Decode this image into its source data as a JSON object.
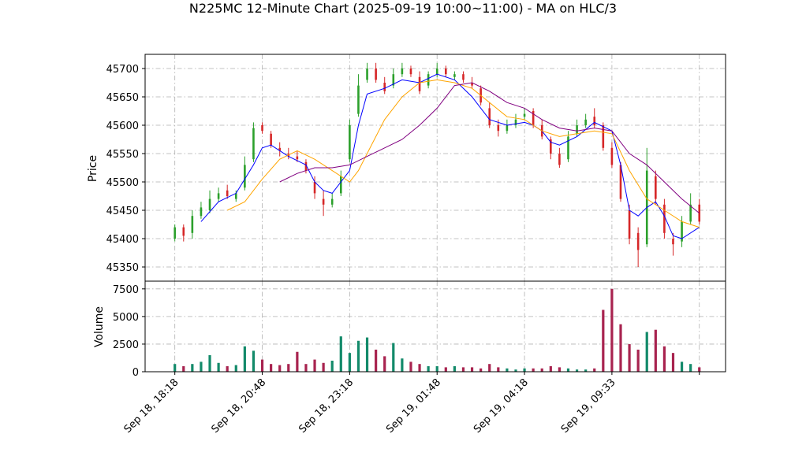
{
  "chart_data": {
    "type": "candlestick",
    "title": "N225MC 12-Minute Chart (2025-09-19 10:00~11:00) - MA on HLC/3",
    "price_panel": {
      "ylabel": "Price",
      "ylim": [
        45325,
        45725
      ],
      "yticks": [
        45350,
        45400,
        45450,
        45500,
        45550,
        45600,
        45650,
        45700
      ],
      "ytick_labels": [
        "45350",
        "45400",
        "45450",
        "45500",
        "45550",
        "45600",
        "45650",
        "45700"
      ],
      "grid": true,
      "candle_up_color": "#2ca02c",
      "candle_down_color": "#d62728",
      "candles": {
        "bar_index": [
          0,
          5,
          10,
          15,
          20,
          25,
          30,
          35,
          40,
          45,
          50,
          55,
          60,
          65,
          70,
          75,
          80,
          85,
          90,
          95,
          100,
          105,
          110,
          115,
          120,
          125,
          130,
          135,
          140,
          145,
          150,
          155,
          160,
          165,
          170,
          175,
          180,
          185,
          190,
          195,
          200,
          205,
          210,
          215,
          220,
          225,
          230,
          235,
          240,
          245,
          250,
          255,
          260,
          265,
          270,
          275,
          280,
          285,
          290,
          295,
          300
        ],
        "close": [
          45420,
          45405,
          45440,
          45455,
          45470,
          45480,
          45475,
          45480,
          45530,
          45595,
          45590,
          45565,
          45555,
          45545,
          45540,
          45520,
          45480,
          45460,
          45470,
          45510,
          45600,
          45670,
          45700,
          45680,
          45660,
          45690,
          45700,
          45690,
          45660,
          45690,
          45700,
          45690,
          45690,
          45680,
          45670,
          45640,
          45600,
          45590,
          45600,
          45610,
          45620,
          45600,
          45580,
          45550,
          45530,
          45580,
          45600,
          45610,
          45600,
          45560,
          45530,
          45470,
          45400,
          45380,
          45520,
          45470,
          45410,
          45390,
          45430,
          45460,
          45430
        ],
        "open": [
          45400,
          45420,
          45410,
          45440,
          45450,
          45470,
          45485,
          45470,
          45490,
          45540,
          45600,
          45585,
          45560,
          45550,
          45545,
          45535,
          45500,
          45470,
          45460,
          45480,
          45540,
          45620,
          45680,
          45700,
          45675,
          45670,
          45690,
          45700,
          45685,
          45670,
          45690,
          45700,
          45685,
          45690,
          45675,
          45665,
          45630,
          45600,
          45590,
          45600,
          45615,
          45625,
          45600,
          45575,
          45550,
          45540,
          45585,
          45600,
          45615,
          45600,
          45560,
          45530,
          45450,
          45410,
          45390,
          45510,
          45460,
          45400,
          45395,
          45430,
          45460
        ],
        "high": [
          45425,
          45425,
          45450,
          45465,
          45485,
          45490,
          45495,
          45485,
          45545,
          45605,
          45605,
          45590,
          45570,
          45560,
          45555,
          45540,
          45510,
          45485,
          45480,
          45520,
          45610,
          45690,
          45710,
          45710,
          45685,
          45700,
          45710,
          45705,
          45695,
          45695,
          45710,
          45705,
          45695,
          45695,
          45685,
          45670,
          45640,
          45610,
          45610,
          45620,
          45630,
          45630,
          45610,
          45580,
          45560,
          45590,
          45610,
          45620,
          45630,
          45605,
          45570,
          45535,
          45460,
          45420,
          45560,
          45520,
          45470,
          45410,
          45440,
          45480,
          45470
        ],
        "low": [
          45395,
          45395,
          45400,
          45435,
          45445,
          45465,
          45470,
          45465,
          45485,
          45535,
          45585,
          45560,
          45545,
          45540,
          45535,
          45515,
          45470,
          45440,
          45455,
          45475,
          45535,
          45615,
          45675,
          45675,
          45655,
          45665,
          45685,
          45685,
          45655,
          45665,
          45685,
          45685,
          45680,
          45675,
          45665,
          45635,
          45595,
          45580,
          45585,
          45595,
          45610,
          45595,
          45575,
          45540,
          45525,
          45535,
          45580,
          45595,
          45595,
          45555,
          45525,
          45465,
          45390,
          45350,
          45385,
          45460,
          45400,
          45370,
          45385,
          45425,
          45425
        ]
      },
      "ma_lines": [
        {
          "color": "#0000ff",
          "x": [
            15,
            25,
            35,
            45,
            50,
            55,
            65,
            75,
            80,
            85,
            90,
            100,
            105,
            110,
            120,
            130,
            140,
            150,
            160,
            170,
            180,
            190,
            200,
            205,
            210,
            215,
            220,
            230,
            240,
            250,
            255,
            260,
            265,
            270,
            275,
            280,
            285,
            290,
            300
          ],
          "y": [
            45430,
            45465,
            45480,
            45530,
            45560,
            45565,
            45545,
            45530,
            45500,
            45485,
            45480,
            45520,
            45600,
            45655,
            45665,
            45680,
            45675,
            45690,
            45680,
            45650,
            45610,
            45600,
            45605,
            45600,
            45590,
            45570,
            45565,
            45580,
            45605,
            45590,
            45530,
            45450,
            45440,
            45455,
            45465,
            45440,
            45405,
            45400,
            45420
          ]
        },
        {
          "color": "#ffa500",
          "x": [
            30,
            40,
            50,
            60,
            70,
            80,
            90,
            100,
            105,
            110,
            120,
            130,
            140,
            150,
            160,
            170,
            180,
            190,
            200,
            210,
            220,
            230,
            240,
            250,
            260,
            270,
            280,
            290,
            300
          ],
          "y": [
            45450,
            45465,
            45505,
            45540,
            45555,
            45540,
            45520,
            45500,
            45520,
            45550,
            45610,
            45650,
            45675,
            45680,
            45675,
            45665,
            45640,
            45615,
            45610,
            45590,
            45580,
            45585,
            45590,
            45585,
            45520,
            45470,
            45450,
            45430,
            45420
          ]
        },
        {
          "color": "#800080",
          "x": [
            60,
            70,
            80,
            90,
            100,
            110,
            120,
            130,
            140,
            150,
            160,
            170,
            180,
            190,
            200,
            210,
            220,
            230,
            240,
            250,
            260,
            270,
            280,
            290,
            300
          ],
          "y": [
            45500,
            45515,
            45525,
            45525,
            45530,
            45545,
            45560,
            45575,
            45600,
            45630,
            45670,
            45675,
            45660,
            45640,
            45630,
            45610,
            45595,
            45590,
            45595,
            45590,
            45550,
            45530,
            45500,
            45470,
            45445
          ]
        }
      ]
    },
    "volume_panel": {
      "ylabel": "Volume",
      "ylim": [
        0,
        8200
      ],
      "yticks": [
        0,
        2500,
        5000,
        7500
      ],
      "ytick_labels": [
        "0",
        "2500",
        "5000",
        "7500"
      ],
      "grid": true,
      "bar_index": [
        0,
        5,
        10,
        15,
        20,
        25,
        30,
        35,
        40,
        45,
        50,
        55,
        60,
        65,
        70,
        75,
        80,
        85,
        90,
        95,
        100,
        105,
        110,
        115,
        120,
        125,
        130,
        135,
        140,
        145,
        150,
        155,
        160,
        165,
        170,
        175,
        180,
        185,
        190,
        195,
        200,
        205,
        210,
        215,
        220,
        225,
        230,
        235,
        240,
        245,
        250,
        255,
        260,
        265,
        270,
        275,
        280,
        285,
        290,
        295,
        300
      ],
      "values": [
        700,
        500,
        700,
        900,
        1500,
        800,
        500,
        600,
        2300,
        1900,
        1100,
        700,
        600,
        700,
        1800,
        700,
        1100,
        800,
        1000,
        3200,
        1700,
        2800,
        3100,
        2000,
        1400,
        2600,
        1200,
        900,
        700,
        500,
        500,
        400,
        500,
        400,
        400,
        300,
        700,
        400,
        300,
        200,
        300,
        300,
        300,
        500,
        400,
        300,
        200,
        200,
        300,
        5600,
        7500,
        4300,
        2500,
        2000,
        3600,
        3800,
        2300,
        1700,
        900,
        700,
        400
      ]
    },
    "x_axis": {
      "range": [
        -17,
        315
      ],
      "tick_positions": [
        0,
        50,
        100,
        150,
        200,
        250,
        300
      ],
      "tick_labels": [
        "Sep 18, 18:18",
        "Sep 18, 20:48",
        "Sep 18, 23:18",
        "Sep 19, 01:48",
        "Sep 19, 04:18",
        "Sep 19, 09:33",
        ""
      ]
    }
  }
}
